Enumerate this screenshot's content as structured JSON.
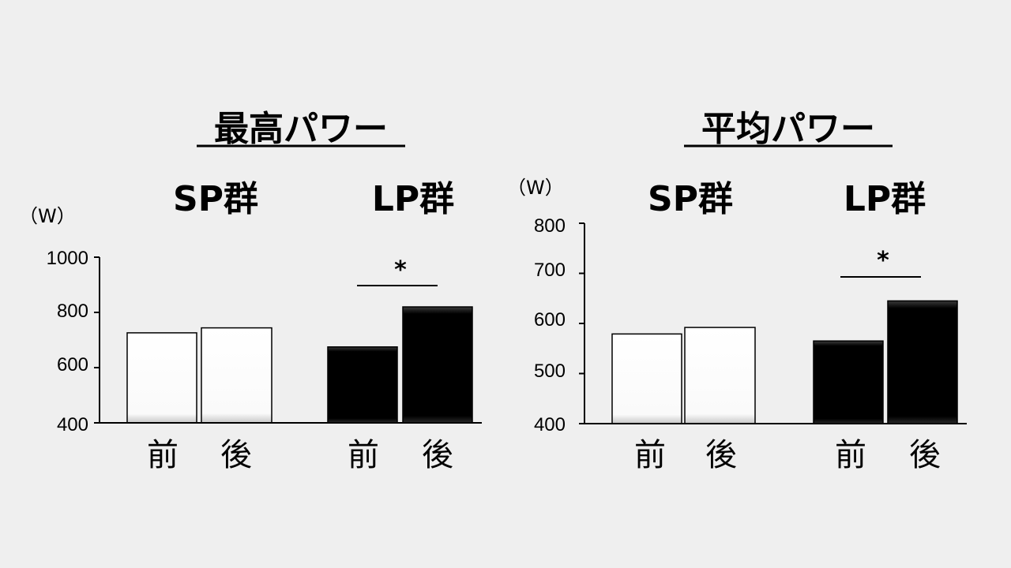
{
  "colors": {
    "background": "#efefef",
    "white_bar": "#ffffff",
    "black_bar": "#000000",
    "axis": "#000000"
  },
  "chart_data": [
    {
      "type": "bar",
      "title": "最高パワー",
      "unit": "（W）",
      "groups": [
        "SP群",
        "LP群"
      ],
      "categories": [
        "前",
        "後"
      ],
      "series": [
        {
          "values": [
            726,
            744
          ],
          "fill": "white"
        },
        {
          "values": [
            675,
            820
          ],
          "fill": "black"
        }
      ],
      "ylim": [
        400,
        1000
      ],
      "yticks": [
        400,
        600,
        800,
        1000
      ],
      "annotation": {
        "text": "*",
        "group": "LP群"
      }
    },
    {
      "type": "bar",
      "title": "平均パワー",
      "unit": "（W）",
      "groups": [
        "SP群",
        "LP群"
      ],
      "categories": [
        "前",
        "後"
      ],
      "series": [
        {
          "values": [
            579,
            592
          ],
          "fill": "white"
        },
        {
          "values": [
            565,
            645
          ],
          "fill": "black"
        }
      ],
      "ylim": [
        400,
        800
      ],
      "yticks": [
        400,
        500,
        600,
        700,
        800
      ],
      "annotation": {
        "text": "*",
        "group": "LP群"
      }
    }
  ]
}
